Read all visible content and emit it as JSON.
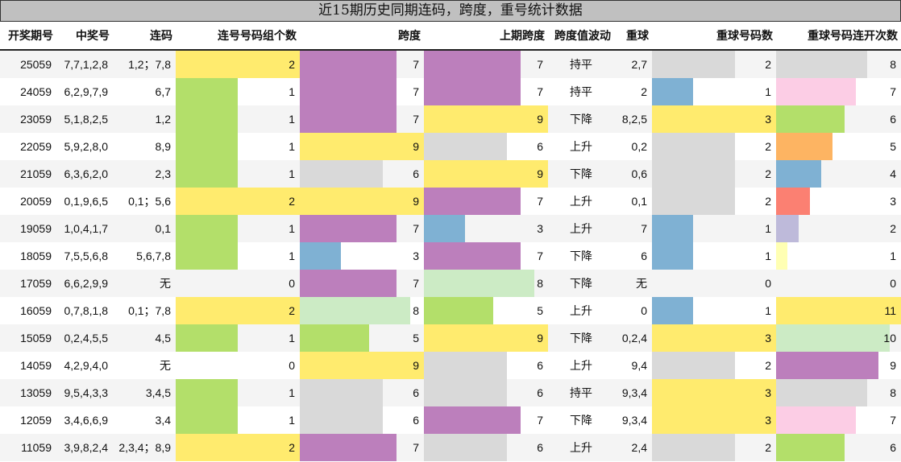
{
  "title": "近15期历史同期连码，跨度，重号统计数据",
  "headers": [
    "开奖期号",
    "中奖号",
    "连码",
    "连号号码组个数",
    "跨度",
    "上期跨度",
    "跨度值波动",
    "重球",
    "重球号码数",
    "重球号码连开次数"
  ],
  "palettes": {
    "lianhao": {
      "2": "#ffeb6e",
      "1": "#b3df6a"
    },
    "kuadu": {
      "9": "#ffeb6e",
      "8": "#ccebc5",
      "7": "#bc7fbc",
      "6": "#d9d9d9",
      "5": "#b3df6a",
      "3": "#7fb1d3"
    },
    "chong": {
      "3": "#ffeb6e",
      "2": "#d9d9d9",
      "1": "#7fb1d3"
    },
    "lianka": {
      "11": "#ffeb6e",
      "10": "#ccebc5",
      "9": "#bc7fbc",
      "8": "#d9d9d9",
      "7": "#fccde5",
      "6": "#b3df6a",
      "5": "#fdb462",
      "4": "#7fb1d3",
      "3": "#fb8072",
      "2": "#bebada",
      "1": "#ffffb3"
    }
  },
  "scale_max": {
    "lianhao": 2,
    "kuadu": 9,
    "chong": 3,
    "lianka": 11
  },
  "rows": [
    [
      "25059",
      "7,7,1,2,8",
      "1,2；7,8",
      2,
      7,
      7,
      "持平",
      "2,7",
      2,
      8
    ],
    [
      "24059",
      "6,2,9,7,9",
      "6,7",
      1,
      7,
      7,
      "持平",
      "2",
      1,
      7
    ],
    [
      "23059",
      "5,1,8,2,5",
      "1,2",
      1,
      7,
      9,
      "下降",
      "8,2,5",
      3,
      6
    ],
    [
      "22059",
      "5,9,2,8,0",
      "8,9",
      1,
      9,
      6,
      "上升",
      "0,2",
      2,
      5
    ],
    [
      "21059",
      "6,3,6,2,0",
      "2,3",
      1,
      6,
      9,
      "下降",
      "0,6",
      2,
      4
    ],
    [
      "20059",
      "0,1,9,6,5",
      "0,1；5,6",
      2,
      9,
      7,
      "上升",
      "0,1",
      2,
      3
    ],
    [
      "19059",
      "1,0,4,1,7",
      "0,1",
      1,
      7,
      3,
      "上升",
      "7",
      1,
      2
    ],
    [
      "18059",
      "7,5,5,6,8",
      "5,6,7,8",
      1,
      3,
      7,
      "下降",
      "6",
      1,
      1
    ],
    [
      "17059",
      "6,6,2,9,9",
      "无",
      0,
      7,
      8,
      "下降",
      "无",
      0,
      0
    ],
    [
      "16059",
      "0,7,8,1,8",
      "0,1；7,8",
      2,
      8,
      5,
      "上升",
      "0",
      1,
      11
    ],
    [
      "15059",
      "0,2,4,5,5",
      "4,5",
      1,
      5,
      9,
      "下降",
      "0,2,4",
      3,
      10
    ],
    [
      "14059",
      "4,2,9,4,0",
      "无",
      0,
      9,
      6,
      "上升",
      "9,4",
      2,
      9
    ],
    [
      "13059",
      "9,5,4,3,3",
      "3,4,5",
      1,
      6,
      6,
      "持平",
      "9,3,4",
      3,
      8
    ],
    [
      "12059",
      "3,4,6,6,9",
      "3,4",
      1,
      6,
      7,
      "下降",
      "9,3,4",
      3,
      7
    ],
    [
      "11059",
      "3,9,8,2,4",
      "2,3,4；8,9",
      2,
      7,
      6,
      "上升",
      "2,4",
      2,
      6
    ]
  ]
}
